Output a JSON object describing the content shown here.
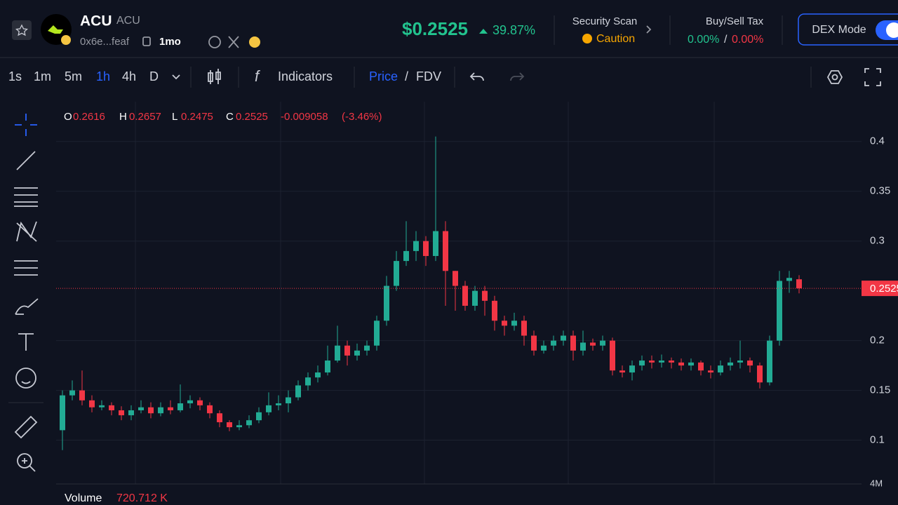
{
  "header": {
    "symbol": "ACU",
    "name": "ACU",
    "address": "0x6e...feaf",
    "age": "1mo",
    "price": "$0.2525",
    "change": "39.87%",
    "security_title": "Security Scan",
    "security_status": "Caution",
    "tax_title": "Buy/Sell Tax",
    "buy_tax": "0.00%",
    "tax_separator": "/",
    "sell_tax": "0.00%",
    "mode": "DEX Mode"
  },
  "toolbar": {
    "intervals": [
      "1s",
      "1m",
      "5m",
      "1h",
      "4h",
      "D"
    ],
    "indicators": "Indicators",
    "price": "Price",
    "separator": "/",
    "fdv": "FDV"
  },
  "legend": {
    "o_label": "O",
    "o": "0.2616",
    "h_label": "H",
    "h": "0.2657",
    "l_label": "L",
    "l": "0.2475",
    "c_label": "C",
    "c": "0.2525",
    "change": "-0.009058",
    "change_pct": "(-3.46%)",
    "volume_label": "Volume",
    "volume": "720.712 K",
    "volume_axis": "4M"
  },
  "chart_data": {
    "type": "candlestick",
    "up_color": "#22ab94",
    "down_color": "#f23645",
    "grid": true,
    "ylim": [
      0.056,
      0.44
    ],
    "yticks": [
      0.1,
      0.15,
      0.2,
      0.3,
      0.35,
      0.4
    ],
    "last_price": 0.2525,
    "last_price_label": "0.2525",
    "open": [
      0.11,
      0.145,
      0.15,
      0.14,
      0.133,
      0.135,
      0.13,
      0.125,
      0.13,
      0.133,
      0.127,
      0.133,
      0.13,
      0.137,
      0.14,
      0.135,
      0.127,
      0.118,
      0.113,
      0.115,
      0.12,
      0.128,
      0.135,
      0.137,
      0.143,
      0.155,
      0.163,
      0.168,
      0.18,
      0.195,
      0.185,
      0.19,
      0.195,
      0.22,
      0.255,
      0.28,
      0.29,
      0.3,
      0.285,
      0.31,
      0.27,
      0.255,
      0.235,
      0.25,
      0.24,
      0.22,
      0.215,
      0.22,
      0.205,
      0.19,
      0.195,
      0.2,
      0.205,
      0.19,
      0.198,
      0.195,
      0.2,
      0.17,
      0.168,
      0.175,
      0.18,
      0.178,
      0.18,
      0.178,
      0.175,
      0.178,
      0.17,
      0.168,
      0.175,
      0.178,
      0.18,
      0.175,
      0.158,
      0.2,
      0.26,
      0.2616
    ],
    "high": [
      0.15,
      0.16,
      0.17,
      0.145,
      0.14,
      0.138,
      0.134,
      0.135,
      0.14,
      0.138,
      0.138,
      0.14,
      0.156,
      0.145,
      0.143,
      0.138,
      0.13,
      0.12,
      0.12,
      0.125,
      0.133,
      0.148,
      0.145,
      0.15,
      0.16,
      0.168,
      0.175,
      0.195,
      0.215,
      0.2,
      0.197,
      0.2,
      0.225,
      0.265,
      0.29,
      0.32,
      0.31,
      0.305,
      0.405,
      0.32,
      0.27,
      0.26,
      0.255,
      0.255,
      0.245,
      0.225,
      0.228,
      0.225,
      0.21,
      0.2,
      0.205,
      0.21,
      0.21,
      0.21,
      0.202,
      0.205,
      0.203,
      0.175,
      0.18,
      0.185,
      0.185,
      0.186,
      0.183,
      0.182,
      0.182,
      0.18,
      0.175,
      0.18,
      0.183,
      0.2,
      0.183,
      0.178,
      0.205,
      0.27,
      0.27,
      0.2657
    ],
    "low": [
      0.09,
      0.14,
      0.135,
      0.128,
      0.13,
      0.125,
      0.12,
      0.12,
      0.127,
      0.122,
      0.124,
      0.126,
      0.128,
      0.132,
      0.13,
      0.122,
      0.113,
      0.109,
      0.11,
      0.112,
      0.117,
      0.125,
      0.13,
      0.128,
      0.14,
      0.15,
      0.158,
      0.165,
      0.178,
      0.175,
      0.18,
      0.185,
      0.19,
      0.215,
      0.25,
      0.275,
      0.28,
      0.275,
      0.28,
      0.235,
      0.23,
      0.23,
      0.23,
      0.225,
      0.21,
      0.205,
      0.21,
      0.195,
      0.185,
      0.187,
      0.19,
      0.195,
      0.18,
      0.185,
      0.19,
      0.19,
      0.165,
      0.163,
      0.16,
      0.17,
      0.172,
      0.173,
      0.172,
      0.17,
      0.17,
      0.165,
      0.162,
      0.165,
      0.17,
      0.172,
      0.168,
      0.152,
      0.155,
      0.195,
      0.248,
      0.2475
    ],
    "close": [
      0.145,
      0.15,
      0.14,
      0.133,
      0.135,
      0.13,
      0.125,
      0.13,
      0.133,
      0.127,
      0.133,
      0.13,
      0.137,
      0.14,
      0.135,
      0.127,
      0.118,
      0.113,
      0.115,
      0.12,
      0.128,
      0.135,
      0.137,
      0.143,
      0.155,
      0.163,
      0.168,
      0.18,
      0.195,
      0.185,
      0.19,
      0.195,
      0.22,
      0.255,
      0.28,
      0.29,
      0.3,
      0.285,
      0.31,
      0.27,
      0.255,
      0.235,
      0.25,
      0.24,
      0.22,
      0.215,
      0.22,
      0.205,
      0.19,
      0.195,
      0.2,
      0.205,
      0.19,
      0.198,
      0.195,
      0.2,
      0.17,
      0.168,
      0.175,
      0.18,
      0.178,
      0.18,
      0.178,
      0.175,
      0.178,
      0.17,
      0.168,
      0.175,
      0.178,
      0.18,
      0.175,
      0.158,
      0.2,
      0.26,
      0.263,
      0.2525
    ]
  }
}
